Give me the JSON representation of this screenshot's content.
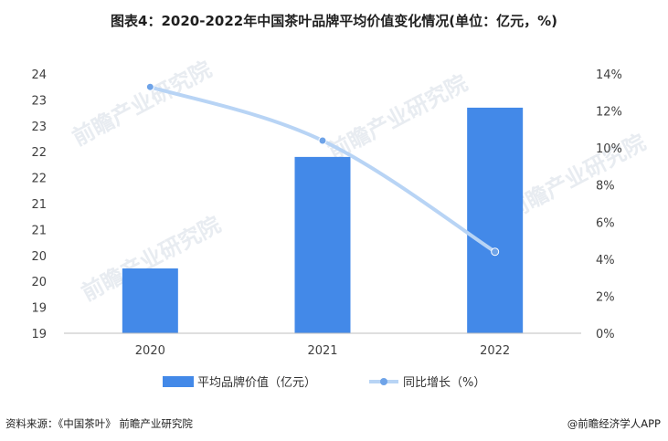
{
  "title": "图表4：2020-2022年中国茶叶品牌平均价值变化情况(单位：亿元，%)",
  "footer": {
    "source": "资料来源：《中国茶叶》 前瞻产业研究院",
    "brand": "@前瞻经济学人APP"
  },
  "watermark": "前瞻产业研究院",
  "colors": {
    "bar": "#4389e8",
    "line": "#b8d4f5",
    "line_marker": "#6ea3e8"
  },
  "chart_data": {
    "type": "bar+line",
    "categories": [
      "2020",
      "2021",
      "2022"
    ],
    "series": [
      {
        "name": "平均品牌价值（亿元）",
        "type": "bar",
        "axis": "left",
        "values": [
          20.25,
          22.4,
          23.35
        ]
      },
      {
        "name": "同比增长（%）",
        "type": "line",
        "axis": "right",
        "values": [
          13.3,
          10.4,
          4.4
        ]
      }
    ],
    "left_axis": {
      "min": 19,
      "max": 24,
      "tick_values": [
        19,
        19.5,
        20,
        20.5,
        21,
        21.5,
        22,
        22.5,
        23,
        23.5,
        24
      ],
      "tick_labels": [
        "19",
        "19",
        "20",
        "20",
        "21",
        "21",
        "22",
        "22",
        "23",
        "23",
        "24"
      ]
    },
    "right_axis": {
      "min": 0,
      "max": 14,
      "tick_values": [
        0,
        2,
        4,
        6,
        8,
        10,
        12,
        14
      ],
      "tick_labels": [
        "0%",
        "2%",
        "4%",
        "6%",
        "8%",
        "10%",
        "12%",
        "14%"
      ]
    },
    "legend_position": "bottom",
    "grid": false
  }
}
